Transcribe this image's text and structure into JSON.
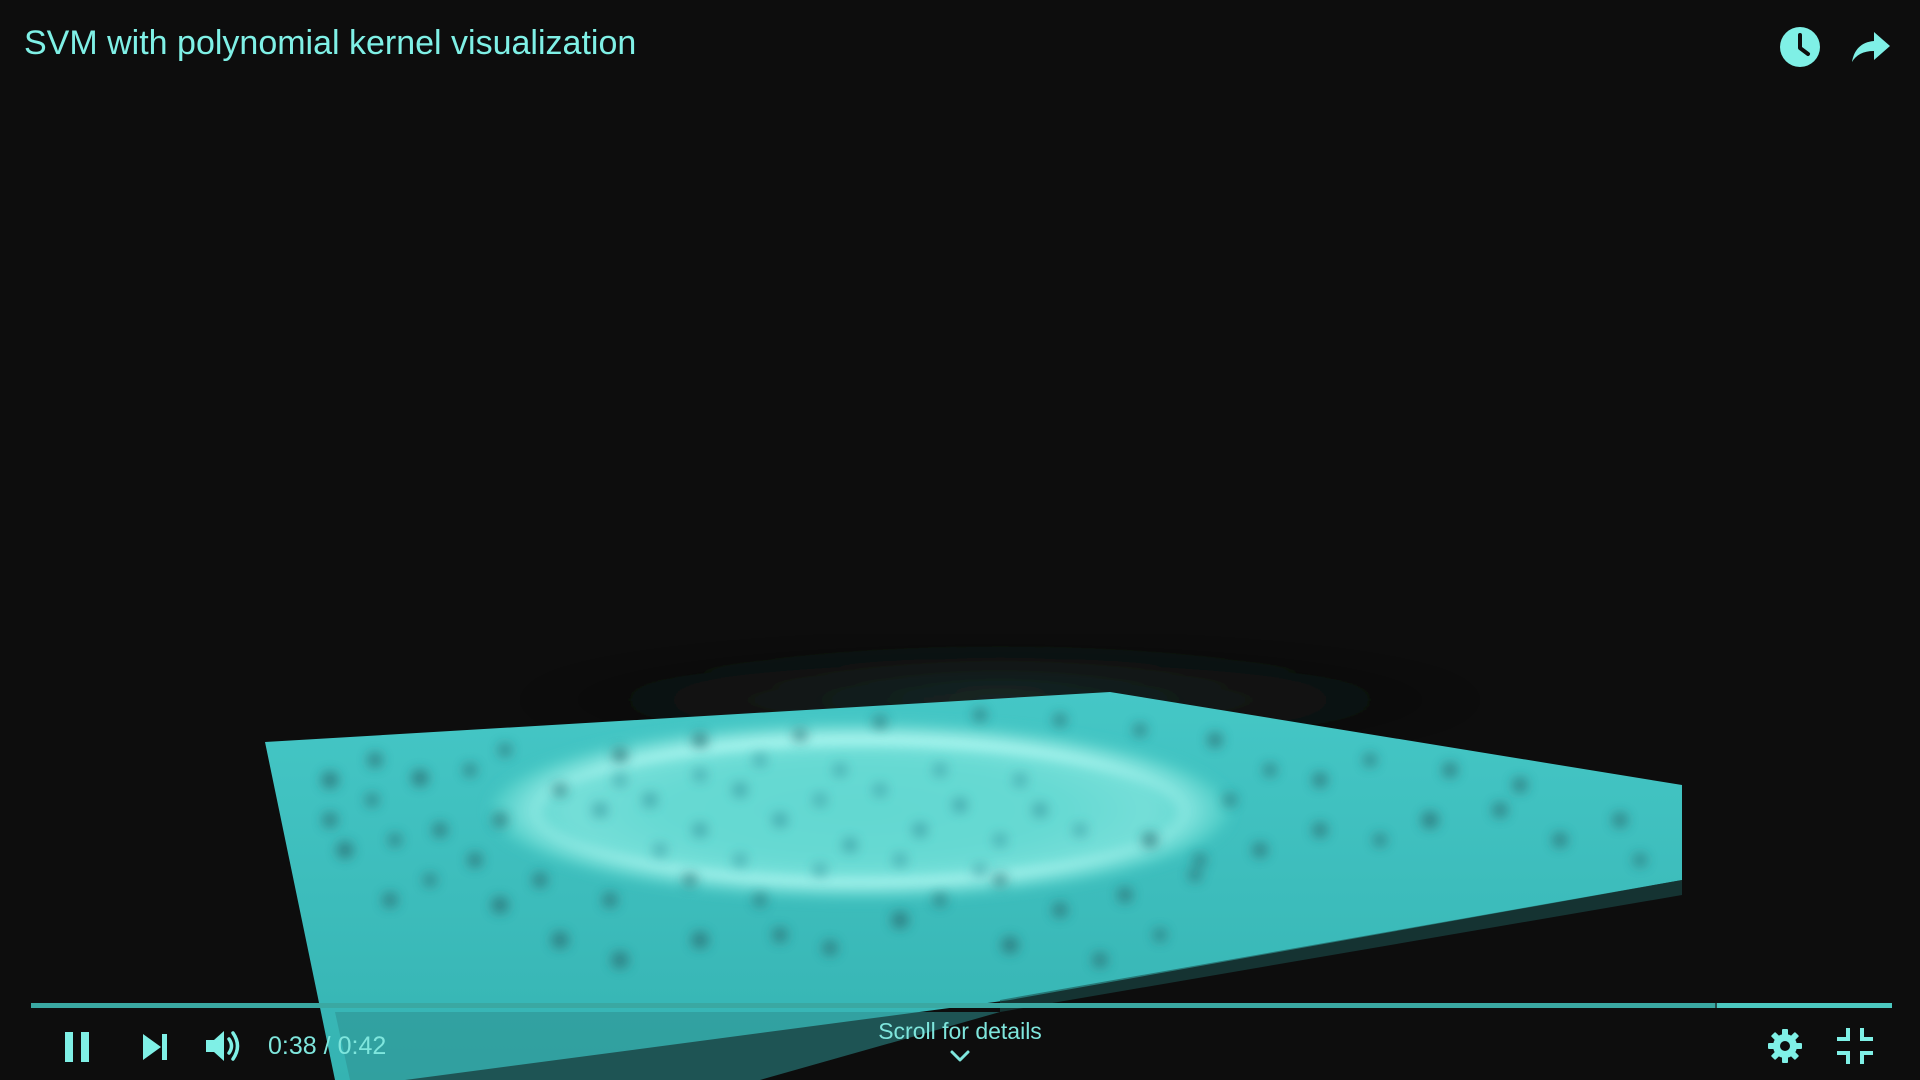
{
  "video": {
    "title": "SVM with polynomial kernel visualization",
    "current_time": "0:38",
    "time_separator": "/",
    "duration": "0:42",
    "progress_fraction": 0.905
  },
  "top_actions": {
    "watch_later_icon": "clock-icon",
    "share_icon": "share-arrow-icon"
  },
  "controls": {
    "pause_icon": "pause-icon",
    "next_icon": "skip-next-icon",
    "volume_icon": "volume-high-icon",
    "settings_icon": "gear-icon",
    "fullscreen_icon": "exit-fullscreen-icon"
  },
  "scroll_hint": {
    "label": "Scroll for details",
    "icon": "chevron-down-icon"
  },
  "colors": {
    "accent": "#7ff0e6",
    "background": "#0d0d0d",
    "surface": "#3cc8c4",
    "surface_glow": "#9ff6ee"
  }
}
